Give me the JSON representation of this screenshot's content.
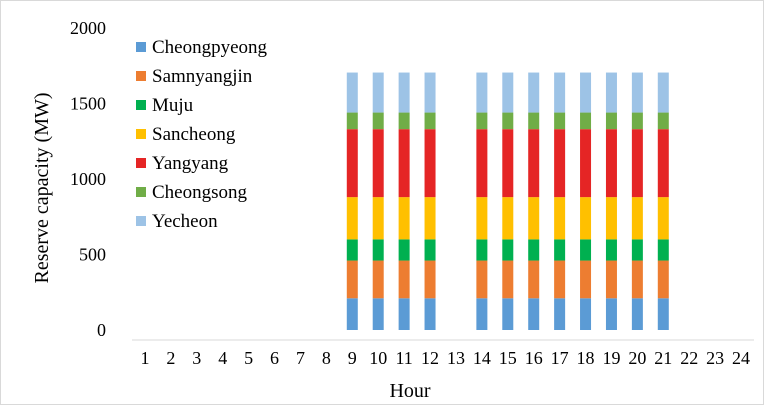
{
  "chart_data": {
    "type": "bar",
    "stacked": true,
    "title": "",
    "xlabel": "Hour",
    "ylabel": "Reserve capacity (MW)",
    "ylim": [
      0,
      2000
    ],
    "yticks": [
      "0",
      "500",
      "1000",
      "1500",
      "2000"
    ],
    "categories": [
      "1",
      "2",
      "3",
      "4",
      "5",
      "6",
      "7",
      "8",
      "9",
      "10",
      "11",
      "12",
      "13",
      "14",
      "15",
      "16",
      "17",
      "18",
      "19",
      "20",
      "21",
      "22",
      "23",
      "24"
    ],
    "grid": false,
    "legend": "top-left",
    "series": [
      {
        "name": "Cheongpyeong",
        "color": "#5B9BD5",
        "values": [
          0,
          0,
          0,
          0,
          0,
          0,
          0,
          0,
          210,
          210,
          210,
          210,
          0,
          210,
          210,
          210,
          210,
          210,
          210,
          210,
          210,
          0,
          0,
          0
        ]
      },
      {
        "name": "Samnyangjin",
        "color": "#ED7D31",
        "values": [
          0,
          0,
          0,
          0,
          0,
          0,
          0,
          0,
          250,
          250,
          250,
          250,
          0,
          250,
          250,
          250,
          250,
          250,
          250,
          250,
          250,
          0,
          0,
          0
        ]
      },
      {
        "name": "Muju",
        "color": "#00B050",
        "values": [
          0,
          0,
          0,
          0,
          0,
          0,
          0,
          0,
          140,
          140,
          140,
          140,
          0,
          140,
          140,
          140,
          140,
          140,
          140,
          140,
          140,
          0,
          0,
          0
        ]
      },
      {
        "name": "Sancheong",
        "color": "#FFC000",
        "values": [
          0,
          0,
          0,
          0,
          0,
          0,
          0,
          0,
          280,
          280,
          280,
          280,
          0,
          280,
          280,
          280,
          280,
          280,
          280,
          280,
          280,
          0,
          0,
          0
        ]
      },
      {
        "name": "Yangyang",
        "color": "#E52525",
        "values": [
          0,
          0,
          0,
          0,
          0,
          0,
          0,
          0,
          450,
          450,
          450,
          450,
          0,
          450,
          450,
          450,
          450,
          450,
          450,
          450,
          450,
          0,
          0,
          0
        ]
      },
      {
        "name": "Cheongsong",
        "color": "#70AD47",
        "values": [
          0,
          0,
          0,
          0,
          0,
          0,
          0,
          0,
          110,
          110,
          110,
          110,
          0,
          110,
          110,
          110,
          110,
          110,
          110,
          110,
          110,
          0,
          0,
          0
        ]
      },
      {
        "name": "Yecheon",
        "color": "#9DC3E6",
        "values": [
          0,
          0,
          0,
          0,
          0,
          0,
          0,
          0,
          265,
          265,
          265,
          265,
          0,
          265,
          265,
          265,
          265,
          265,
          265,
          265,
          265,
          0,
          0,
          0
        ]
      }
    ]
  }
}
